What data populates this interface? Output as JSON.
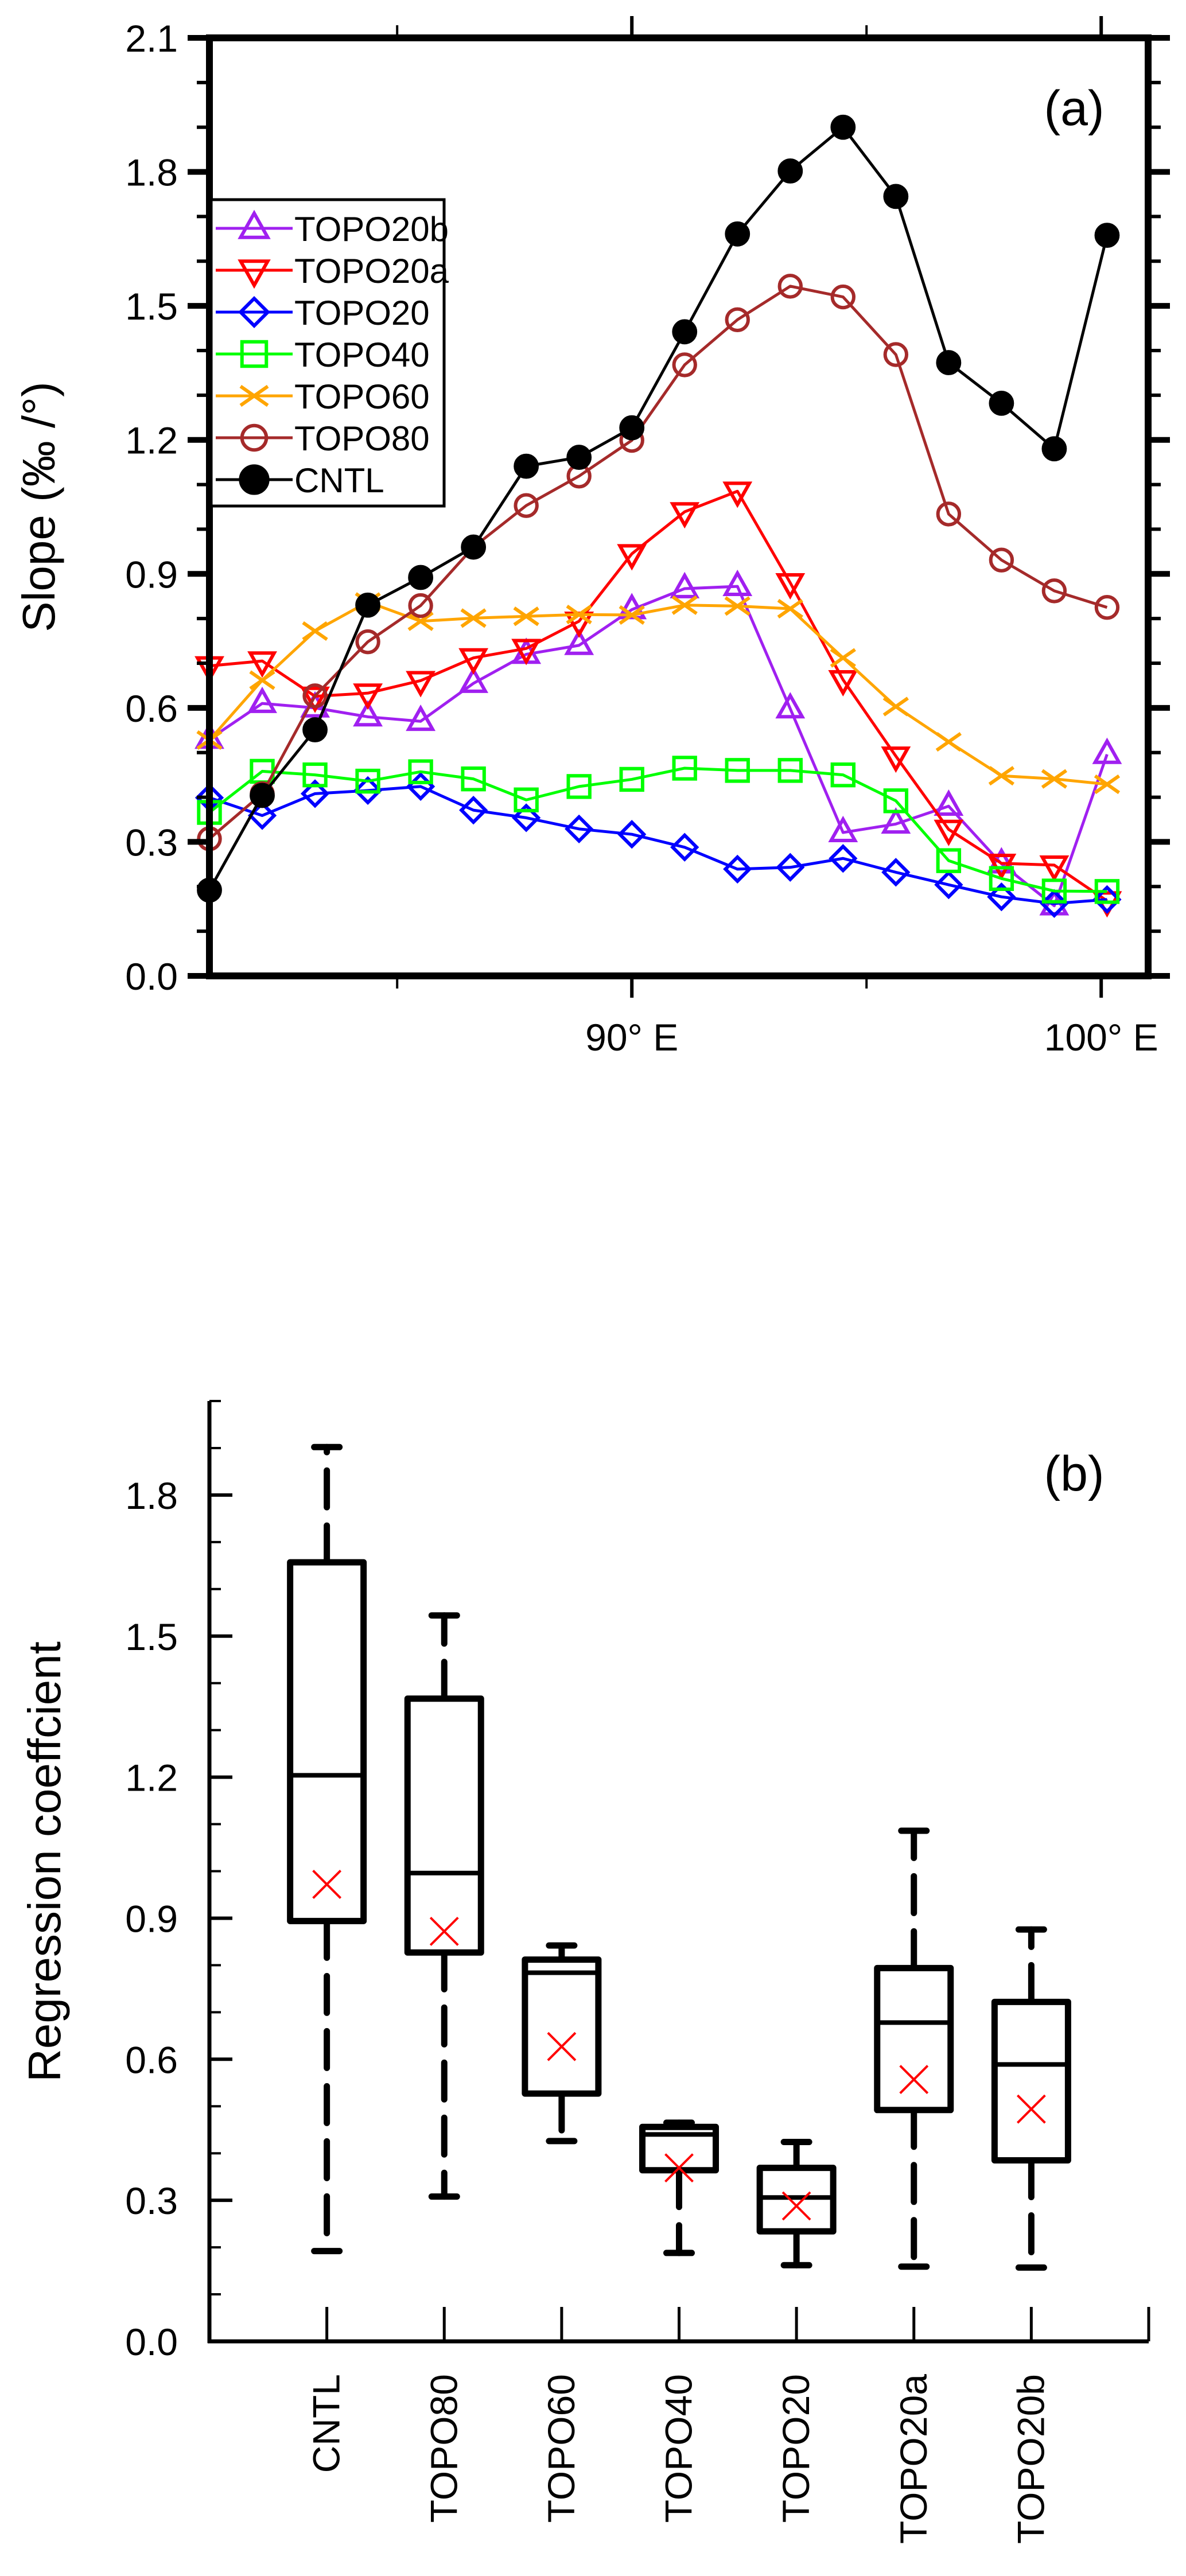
{
  "chart_data": [
    {
      "panel": "(a)",
      "type": "line",
      "xlabel": "",
      "ylabel": "Slope (‰ /°)",
      "xlim": [
        81,
        101
      ],
      "ylim": [
        0.0,
        2.1
      ],
      "x_ticks": [
        {
          "value": 85,
          "label": ""
        },
        {
          "value": 90,
          "label": "90° E"
        },
        {
          "value": 95,
          "label": ""
        },
        {
          "value": 100,
          "label": "100° E"
        }
      ],
      "y_ticks": [
        "0.0",
        "0.3",
        "0.6",
        "0.9",
        "1.2",
        "1.5",
        "1.8",
        "2.1"
      ],
      "y_minor_step": 0.1,
      "grid": false,
      "legend_position": "upper-left",
      "x": [
        81.0,
        82.125,
        83.25,
        84.375,
        85.5,
        86.625,
        87.75,
        88.875,
        90.0,
        91.125,
        92.25,
        93.375,
        94.5,
        95.625,
        96.75,
        97.875,
        99.0,
        100.125
      ],
      "series": [
        {
          "name": "TOPO20b",
          "color": "#a020f0",
          "marker": "triangle-up",
          "values": [
            0.53,
            0.61,
            0.6,
            0.58,
            0.57,
            0.655,
            0.72,
            0.74,
            0.82,
            0.867,
            0.872,
            0.598,
            0.321,
            0.34,
            0.38,
            0.251,
            0.157,
            0.496
          ]
        },
        {
          "name": "TOPO20a",
          "color": "#ff0000",
          "marker": "triangle-down",
          "values": [
            0.694,
            0.705,
            0.626,
            0.633,
            0.661,
            0.712,
            0.733,
            0.794,
            0.945,
            1.039,
            1.085,
            0.88,
            0.663,
            0.492,
            0.328,
            0.252,
            0.248,
            0.168
          ]
        },
        {
          "name": "TOPO20",
          "color": "#0000ff",
          "marker": "diamond",
          "values": [
            0.399,
            0.359,
            0.408,
            0.415,
            0.424,
            0.371,
            0.354,
            0.329,
            0.317,
            0.288,
            0.239,
            0.243,
            0.263,
            0.232,
            0.204,
            0.177,
            0.162,
            0.171
          ]
        },
        {
          "name": "TOPO40",
          "color": "#00ff00",
          "marker": "square",
          "values": [
            0.366,
            0.458,
            0.45,
            0.436,
            0.457,
            0.441,
            0.394,
            0.424,
            0.44,
            0.465,
            0.46,
            0.46,
            0.45,
            0.392,
            0.258,
            0.218,
            0.19,
            0.189
          ]
        },
        {
          "name": "TOPO60",
          "color": "#ffa500",
          "marker": "x",
          "values": [
            0.528,
            0.662,
            0.772,
            0.837,
            0.794,
            0.801,
            0.805,
            0.809,
            0.808,
            0.83,
            0.828,
            0.822,
            0.712,
            0.603,
            0.524,
            0.448,
            0.441,
            0.429
          ]
        },
        {
          "name": "TOPO80",
          "color": "#a52a2a",
          "marker": "circle-open",
          "values": [
            0.307,
            0.408,
            0.627,
            0.748,
            0.829,
            0.96,
            1.053,
            1.119,
            1.199,
            1.368,
            1.469,
            1.544,
            1.52,
            1.391,
            1.034,
            0.931,
            0.862,
            0.825
          ]
        },
        {
          "name": "CNTL",
          "color": "#000000",
          "marker": "circle-filled",
          "values": [
            0.192,
            0.404,
            0.551,
            0.83,
            0.892,
            0.96,
            1.141,
            1.161,
            1.227,
            1.442,
            1.661,
            1.802,
            1.9,
            1.745,
            1.373,
            1.282,
            1.18,
            1.658
          ]
        }
      ]
    },
    {
      "panel": "(b)",
      "type": "box",
      "xlabel": "",
      "ylabel": "Regression coeffcient",
      "ylim": [
        0.0,
        2.0
      ],
      "y_ticks": [
        "0.0",
        "0.3",
        "0.6",
        "0.9",
        "1.2",
        "1.5",
        "1.8"
      ],
      "y_minor_step": 0.1,
      "grid": false,
      "categories": [
        "CNTL",
        "TOPO80",
        "TOPO60",
        "TOPO40",
        "TOPO20",
        "TOPO20a",
        "TOPO20b"
      ],
      "box_color": "#000000",
      "mean_marker_color": "#ff0000",
      "boxes": [
        {
          "name": "CNTL",
          "min": 0.192,
          "q1": 0.894,
          "median": 1.204,
          "q3": 1.657,
          "max": 1.902,
          "mean": 0.972
        },
        {
          "name": "TOPO80",
          "min": 0.308,
          "q1": 0.827,
          "median": 0.996,
          "q3": 1.367,
          "max": 1.544,
          "mean": 0.872
        },
        {
          "name": "TOPO60",
          "min": 0.426,
          "q1": 0.527,
          "median": 0.784,
          "q3": 0.812,
          "max": 0.842,
          "mean": 0.627
        },
        {
          "name": "TOPO40",
          "min": 0.188,
          "q1": 0.364,
          "median": 0.44,
          "q3": 0.456,
          "max": 0.465,
          "mean": 0.369
        },
        {
          "name": "TOPO20",
          "min": 0.162,
          "q1": 0.234,
          "median": 0.306,
          "q3": 0.369,
          "max": 0.424,
          "mean": 0.288
        },
        {
          "name": "TOPO20a",
          "min": 0.159,
          "q1": 0.492,
          "median": 0.678,
          "q3": 0.794,
          "max": 1.086,
          "mean": 0.557
        },
        {
          "name": "TOPO20b",
          "min": 0.157,
          "q1": 0.385,
          "median": 0.589,
          "q3": 0.722,
          "max": 0.876,
          "mean": 0.494
        }
      ]
    }
  ]
}
